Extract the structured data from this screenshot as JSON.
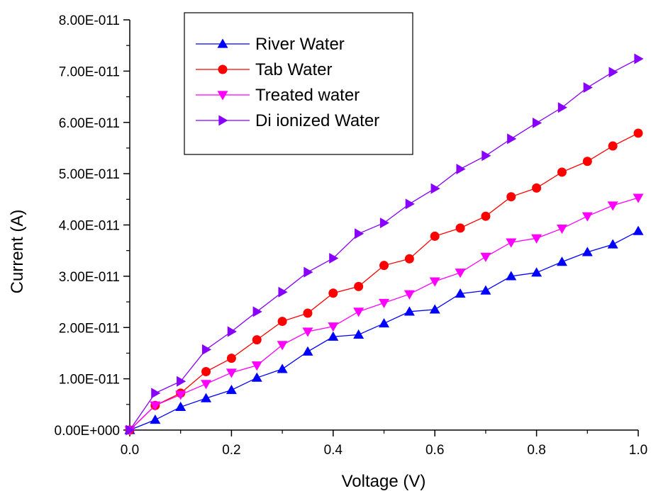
{
  "chart_data": {
    "type": "line",
    "title": "",
    "xlabel": "Voltage (V)",
    "ylabel": "Current (A)",
    "xlim": [
      0,
      1.0
    ],
    "ylim": [
      0,
      8e-11
    ],
    "x_ticks": [
      0,
      0.2,
      0.4,
      0.6,
      0.8,
      1.0
    ],
    "x_tick_labels": [
      "0.0",
      "0.2",
      "0.4",
      "0.6",
      "0.8",
      "1.0"
    ],
    "y_ticks": [
      0,
      1e-11,
      2e-11,
      3e-11,
      4e-11,
      5e-11,
      6e-11,
      7e-11,
      8e-11
    ],
    "y_tick_labels": [
      "0.00E+000",
      "1.00E-011",
      "2.00E-011",
      "3.00E-011",
      "4.00E-011",
      "5.00E-011",
      "6.00E-011",
      "7.00E-011",
      "8.00E-011"
    ],
    "grid": false,
    "legend_position": "top-left",
    "x": [
      0,
      0.05,
      0.1,
      0.15,
      0.2,
      0.25,
      0.3,
      0.35,
      0.4,
      0.45,
      0.5,
      0.55,
      0.6,
      0.65,
      0.7,
      0.75,
      0.8,
      0.85,
      0.9,
      0.95,
      1.0
    ],
    "series": [
      {
        "name": "River Water",
        "color": "#0000ff",
        "marker": "triangle-up",
        "values": [
          0,
          2e-12,
          4.5e-12,
          6.2e-12,
          7.8e-12,
          1.02e-11,
          1.19e-11,
          1.53e-11,
          1.82e-11,
          1.86e-11,
          2.08e-11,
          2.31e-11,
          2.35e-11,
          2.66e-11,
          2.72e-11,
          3e-11,
          3.07e-11,
          3.28e-11,
          3.47e-11,
          3.62e-11,
          3.88e-11
        ]
      },
      {
        "name": "Tab  Water",
        "color": "#ff0000",
        "marker": "circle",
        "values": [
          0,
          4.8e-12,
          7.2e-12,
          1.14e-11,
          1.4e-11,
          1.76e-11,
          2.12e-11,
          2.28e-11,
          2.67e-11,
          2.8e-11,
          3.21e-11,
          3.34e-11,
          3.78e-11,
          3.94e-11,
          4.17e-11,
          4.55e-11,
          4.72e-11,
          5.03e-11,
          5.24e-11,
          5.54e-11,
          5.79e-11
        ]
      },
      {
        "name": "Treated water",
        "color": "#ff00ff",
        "marker": "triangle-down",
        "values": [
          0,
          4.8e-12,
          6.9e-12,
          9e-12,
          1.12e-11,
          1.26e-11,
          1.66e-11,
          1.92e-11,
          2.02e-11,
          2.31e-11,
          2.48e-11,
          2.65e-11,
          2.9e-11,
          3.07e-11,
          3.38e-11,
          3.66e-11,
          3.74e-11,
          3.93e-11,
          4.17e-11,
          4.38e-11,
          4.53e-11
        ]
      },
      {
        "name": "Di ionized Water",
        "color": "#8800ff",
        "marker": "triangle-right",
        "values": [
          0,
          7.2e-12,
          9.5e-12,
          1.57e-11,
          1.92e-11,
          2.31e-11,
          2.69e-11,
          3.08e-11,
          3.35e-11,
          3.83e-11,
          4.04e-11,
          4.41e-11,
          4.71e-11,
          5.09e-11,
          5.35e-11,
          5.68e-11,
          5.99e-11,
          6.29e-11,
          6.68e-11,
          6.98e-11,
          7.24e-11
        ]
      }
    ]
  }
}
